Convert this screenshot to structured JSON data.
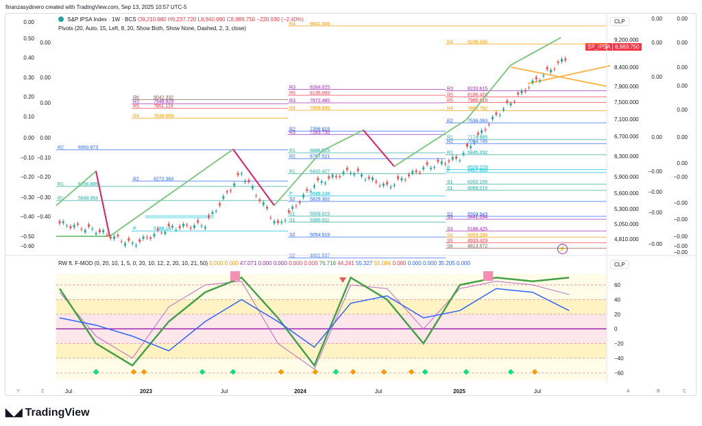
{
  "header": {
    "credit": "finanzasydinero created with TradingView.com, Sep 13, 2025 10:57 UTC-5"
  },
  "legend": {
    "symbol": "S&P IPSA Index · 1W · BCS",
    "open": "O9,210.680",
    "high": "H9,237.720",
    "low": "L8,940.690",
    "close": "C8,989.750",
    "change": "−220.930 (−2.40%)",
    "pivots": "Pivots (20, Auto, 15, Left, 8, 20, Show Both, Show None, Dashed, 2, 3, close)",
    "indicator": "RW ft. F-MOD (0, 20, 10, 1, 5, 0, 20, 10, 12, 2, 20, 10, 21, 50)",
    "indicator_values": [
      {
        "v": "0.000",
        "c": "#ff9800"
      },
      {
        "v": "0.000",
        "c": "#ff9800"
      },
      {
        "v": "47.071",
        "c": "#9c27b0"
      },
      {
        "v": "0.000",
        "c": "#9c27b0"
      },
      {
        "v": "0.000",
        "c": "#9c27b0"
      },
      {
        "v": "0.000",
        "c": "#f23645"
      },
      {
        "v": "0.000",
        "c": "#f23645"
      },
      {
        "v": "76.716",
        "c": "#388e3c"
      },
      {
        "v": "44.241",
        "c": "#f23645"
      },
      {
        "v": "55.327",
        "c": "#2962ff"
      },
      {
        "v": "55.094",
        "c": "#ff9800"
      },
      {
        "v": "0.000",
        "c": "#f23645"
      },
      {
        "v": "0.000",
        "c": "#2962ff"
      },
      {
        "v": "0.000",
        "c": "#2962ff"
      },
      {
        "v": "35.205",
        "c": "#2962ff"
      },
      {
        "v": "0.000",
        "c": "#2962ff"
      }
    ]
  },
  "price_scale": {
    "currency": "CLP",
    "symbol_tag": "SP_IPSA",
    "last_price": "8,989.750",
    "ticks": [
      "9,200.000",
      "8,400.000",
      "7,900.000",
      "7,500.000",
      "7,100.000",
      "6,700.000",
      "6,300.000",
      "5,900.000",
      "5,600.000",
      "5,300.000",
      "5,050.000",
      "4,810.000"
    ]
  },
  "indicator_scale": {
    "currency": "CLP",
    "ticks": [
      "60",
      "40",
      "20",
      "0",
      "−20",
      "−40",
      "−60"
    ]
  },
  "time_axis": [
    "Jul",
    "2023",
    "Jul",
    "2024",
    "Jul",
    "2025",
    "Jul"
  ],
  "corner_labels": {
    "left": "Y",
    "z": "Z",
    "a": "A",
    "b": "B",
    "c": "C"
  },
  "brand": "TradingView",
  "chart_data": {
    "type": "line",
    "title": "S&P IPSA Index · 1W · BCS",
    "ylim": [
      4700,
      9700
    ],
    "x": [
      "2022-05",
      "2022-07",
      "2022-10",
      "2023-01",
      "2023-04",
      "2023-07",
      "2023-10",
      "2024-01",
      "2024-04",
      "2024-07",
      "2024-10",
      "2025-01",
      "2025-04",
      "2025-07",
      "2025-09"
    ],
    "series": [
      {
        "name": "SP_IPSA close",
        "values": [
          5350,
          5200,
          4900,
          5250,
          5330,
          6450,
          5300,
          6200,
          6500,
          6150,
          6550,
          6780,
          7700,
          8400,
          8990
        ]
      }
    ],
    "pivot_labels": [
      "R4 9641.546",
      "R4 9249.345",
      "R3 8264.025",
      "R3 8233.615",
      "R5 8135.093",
      "R5 8100.424",
      "R6 8042.332",
      "R3 7948.829",
      "R3 7972.485",
      "R5 7980.618",
      "R5 7851.119",
      "R4 7809.939",
      "R4 7800.762",
      "R4 7639.909",
      "R2 7536.063",
      "R2 7356.618",
      "R3 7283.730",
      "R1 7174.885",
      "R2 7084.745",
      "R2 6950.973",
      "R1 6886.525",
      "R2 6757.521",
      "R1 6845.032",
      "P 6520.229",
      "R1 6432.427",
      "P 6457.053",
      "R2 6272.383",
      "S1 6202.155",
      "R1 6156.885",
      "S1 6069.015",
      "P 5949.108",
      "R1 5849.954",
      "S2 5829.302",
      "S1 5509.015",
      "S2 5504.543",
      "S1 5380.011",
      "S3 5441.294",
      "P 5188.18",
      "S3 5186.425",
      "S2 5054.919",
      "S4 5053.285",
      "S5 4933.429",
      "S6 4813.572",
      "S2 4601.597"
    ],
    "left_scale_values": [
      "0.00",
      "0.50",
      "0.40",
      "0.30",
      "0.20",
      "0.10",
      "0.00",
      "−0.10",
      "−0.20",
      "−0.30",
      "−0.40",
      "−0.50",
      "−0.60"
    ],
    "right_scale_values": [
      "0.00",
      "0.00",
      "0.00",
      "0.00",
      "0.00",
      "0.00",
      "0.00",
      "−0.00",
      "−0.00",
      "−0.00",
      "−0.00",
      "−0.00",
      "−0.00"
    ],
    "oscillator": {
      "ylim": [
        -70,
        75
      ],
      "blue": [
        15,
        5,
        -10,
        -30,
        10,
        40,
        10,
        -25,
        35,
        45,
        15,
        25,
        55,
        50,
        25
      ],
      "green": [
        55,
        -20,
        -50,
        10,
        50,
        70,
        15,
        -50,
        70,
        40,
        -20,
        60,
        70,
        65,
        70
      ],
      "purple": [
        50,
        -10,
        -40,
        30,
        60,
        65,
        -20,
        -55,
        60,
        55,
        0,
        55,
        65,
        60,
        47
      ]
    }
  }
}
